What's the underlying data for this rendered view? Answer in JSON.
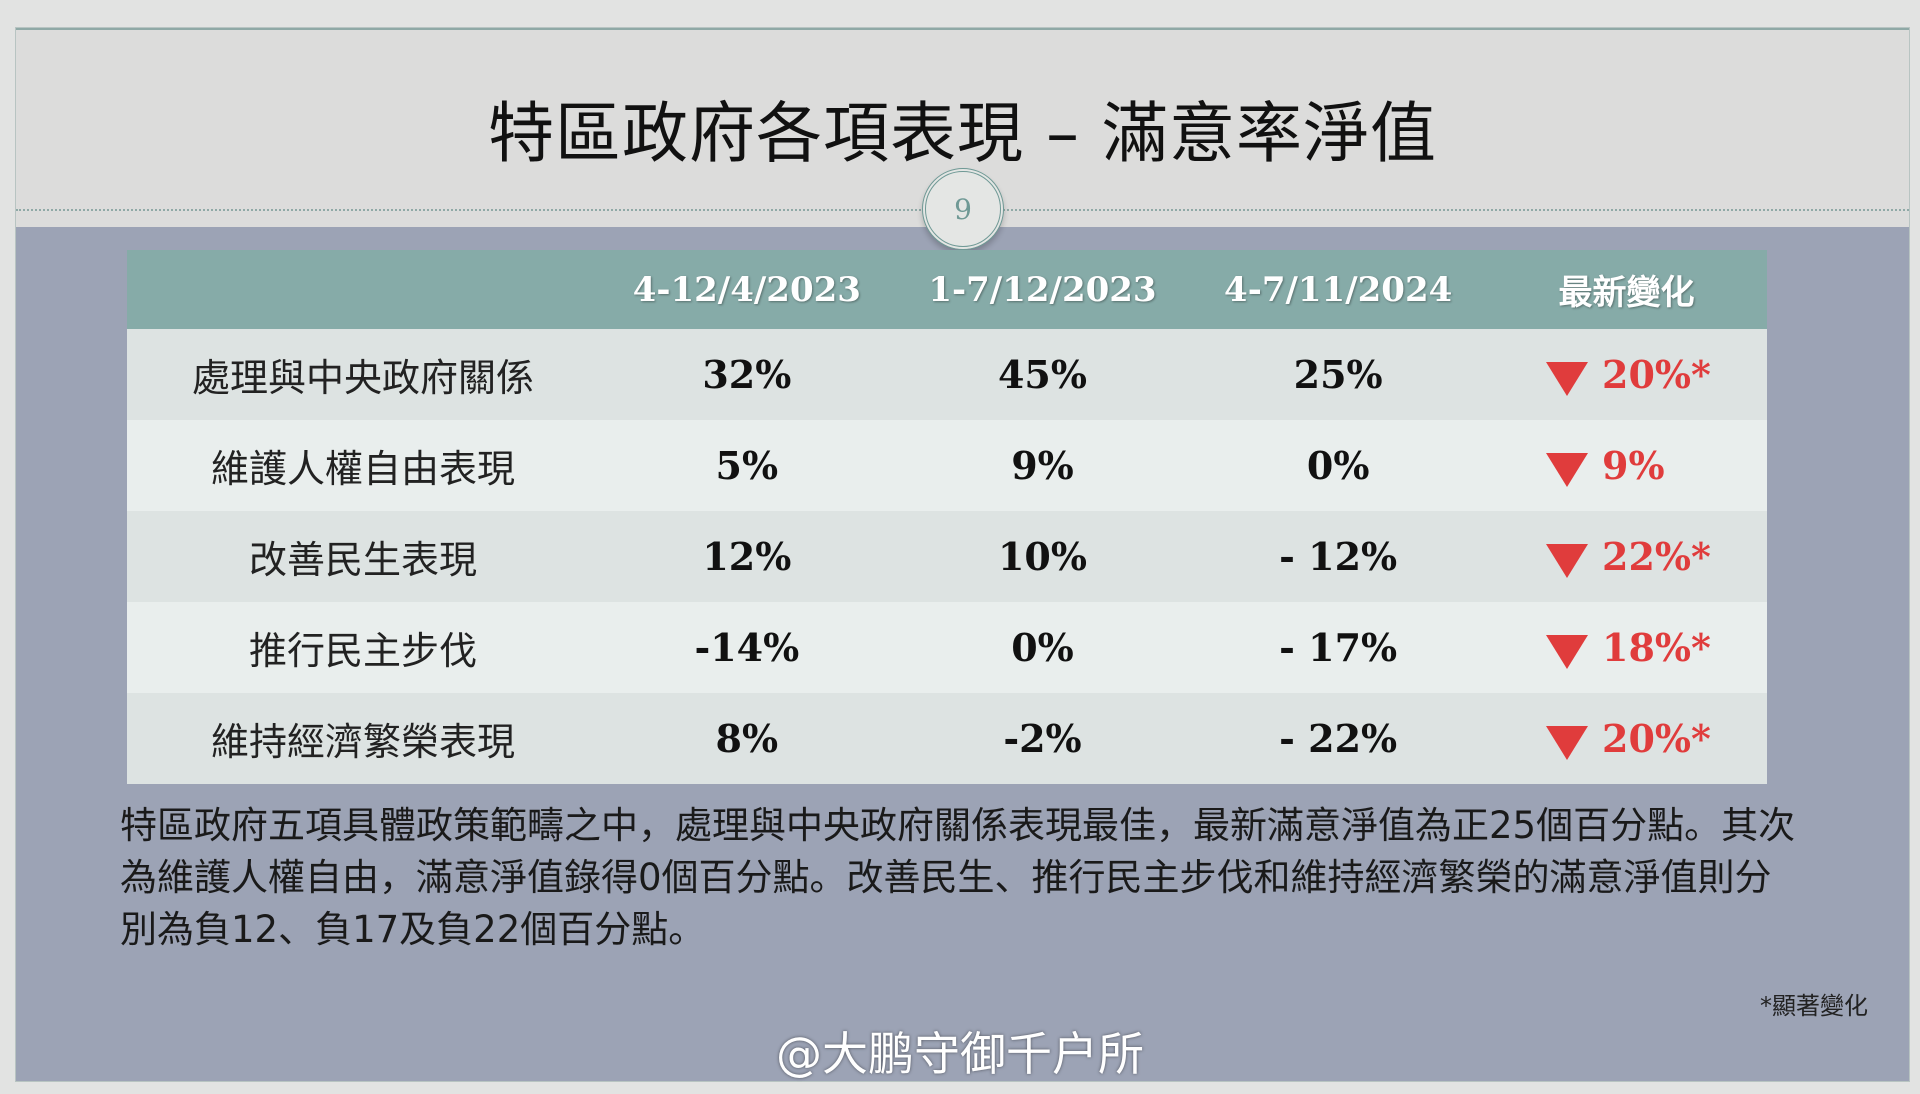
{
  "title": "特區政府各項表現 – 滿意率淨值",
  "page_number": "9",
  "table": {
    "headers": [
      "",
      "4-12/4/2023",
      "1-7/12/2023",
      "4-7/11/2024",
      "最新變化"
    ],
    "rows": [
      {
        "label": "處理與中央政府關係",
        "c1": "32%",
        "c2": "45%",
        "c3": "25%",
        "change": "20%*",
        "direction": "down"
      },
      {
        "label": "維護人權自由表現",
        "c1": "5%",
        "c2": "9%",
        "c3": "0%",
        "change": "9%",
        "direction": "down"
      },
      {
        "label": "改善民生表現",
        "c1": "12%",
        "c2": "10%",
        "c3": "- 12%",
        "change": "22%*",
        "direction": "down"
      },
      {
        "label": "推行民主步伐",
        "c1": "-14%",
        "c2": "0%",
        "c3": "- 17%",
        "change": "18%*",
        "direction": "down"
      },
      {
        "label": "維持經濟繁榮表現",
        "c1": "8%",
        "c2": "-2%",
        "c3": "- 22%",
        "change": "20%*",
        "direction": "down"
      }
    ]
  },
  "paragraph": "特區政府五項具體政策範疇之中，處理與中央政府關係表現最佳，最新滿意淨值為正25個百分點。其次為維護人權自由，滿意淨值錄得0個百分點。改善民生、推行民主步伐和維持經濟繁榮的滿意淨值則分別為負12、負17及負22個百分點。",
  "footnote": "*顯著變化",
  "watermark": "@大鹏守御千户所",
  "colors": {
    "header": "#86aba8",
    "decrease": "#e03c3c",
    "background": "#9ca3b5"
  }
}
